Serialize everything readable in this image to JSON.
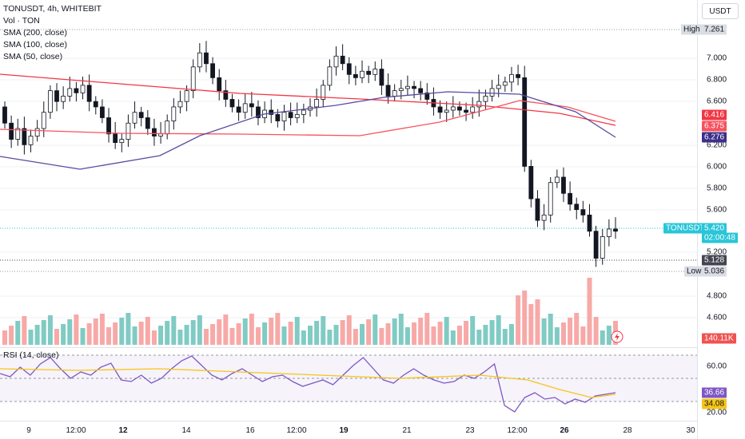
{
  "legend": {
    "title": "TONUSDT, 4h, WHITEBIT",
    "vol": "Vol · TON",
    "sma200": "SMA (200, close)",
    "sma100": "SMA (100, close)",
    "sma50": "SMA (50, close)"
  },
  "rsi_label": "RSI (14, close)",
  "currency": "USDT",
  "price_axis": {
    "ticks": [
      "7.000",
      "6.800",
      "6.600",
      "6.200",
      "6.000",
      "5.800",
      "5.600",
      "5.200",
      "4.800",
      "4.600"
    ],
    "high_label": "High",
    "high_value": "7.261",
    "low_label": "Low",
    "low_value": "5.036",
    "ma_tags": [
      "6.416",
      "6.375",
      "6.276"
    ],
    "symbol_tag": "TONUSDT",
    "last_price": "5.420",
    "countdown": "02:00:48",
    "crosshair_value": "5.128",
    "volume_tag": "140.11K"
  },
  "rsi_axis": {
    "ticks": [
      "60.00",
      "20.00"
    ],
    "value_tags": [
      "36.66",
      "34.08"
    ]
  },
  "time_axis": {
    "labels": [
      {
        "text": "9",
        "bold": false
      },
      {
        "text": "12:00",
        "bold": false
      },
      {
        "text": "12",
        "bold": true
      },
      {
        "text": "14",
        "bold": false
      },
      {
        "text": "16",
        "bold": false
      },
      {
        "text": "12:00",
        "bold": false
      },
      {
        "text": "19",
        "bold": true
      },
      {
        "text": "21",
        "bold": false
      },
      {
        "text": "23",
        "bold": false
      },
      {
        "text": "12:00",
        "bold": false
      },
      {
        "text": "26",
        "bold": true
      },
      {
        "text": "28",
        "bold": false
      },
      {
        "text": "30",
        "bold": false
      }
    ]
  },
  "colors": {
    "up": "#26a69a",
    "down": "#ef5350",
    "sma200": "#f23645",
    "sma100": "#f7525f",
    "sma50": "#5b4aa0",
    "rsi": "#7e57c2",
    "rsi_ma": "#f5c518",
    "symbol_tag": "#29c5d8"
  },
  "icons": {
    "flash": "lightning-icon"
  }
}
